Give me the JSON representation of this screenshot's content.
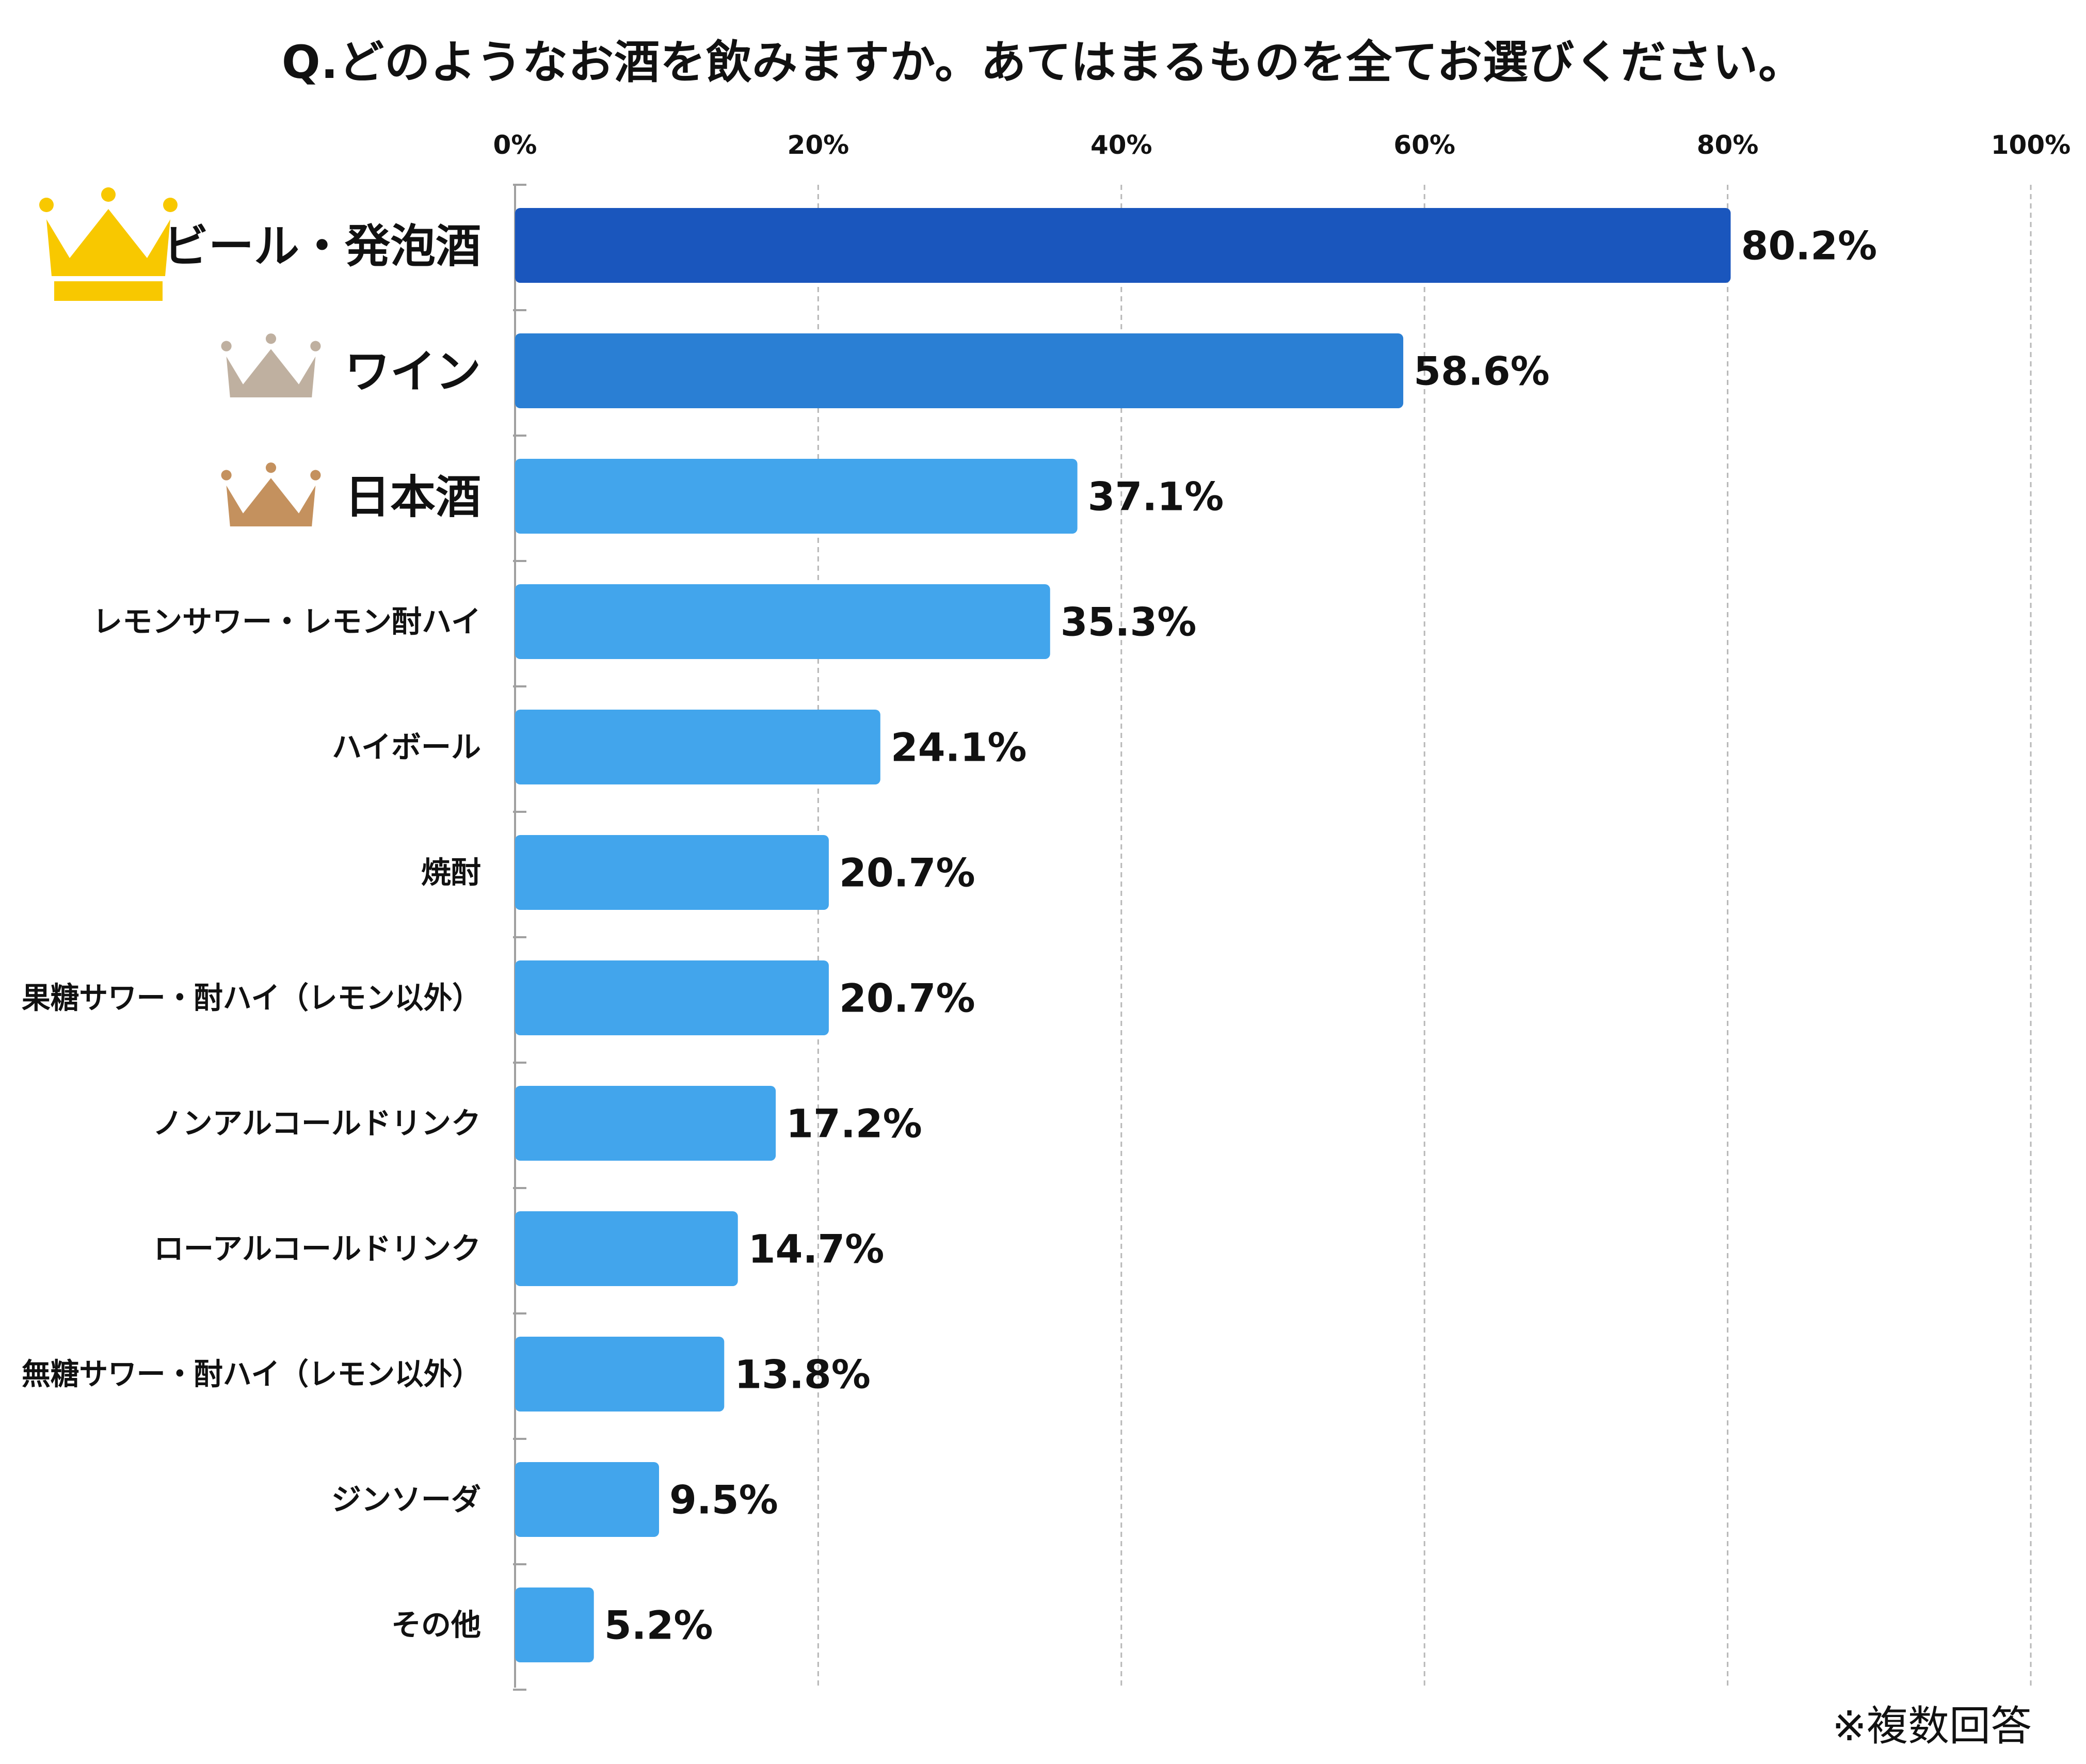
{
  "chart_data": {
    "type": "bar",
    "orientation": "horizontal",
    "title": "Q.どのようなお酒を飲みますか。あてはまるものを全てお選びください。",
    "xlim": [
      0,
      100
    ],
    "x_ticks": [
      "0%",
      "20%",
      "40%",
      "60%",
      "80%",
      "100%"
    ],
    "x_tick_values": [
      0,
      20,
      40,
      60,
      80,
      100
    ],
    "grid": "vertical-dashed",
    "categories": [
      "ビール・発泡酒",
      "ワイン",
      "日本酒",
      "レモンサワー・レモン酎ハイ",
      "ハイボール",
      "焼酎",
      "果糖サワー・酎ハイ（レモン以外）",
      "ノンアルコールドリンク",
      "ローアルコールドリンク",
      "無糖サワー・酎ハイ（レモン以外）",
      "ジンソーダ",
      "その他"
    ],
    "values": [
      80.2,
      58.6,
      37.1,
      35.3,
      24.1,
      20.7,
      20.7,
      17.2,
      14.7,
      13.8,
      9.5,
      5.2
    ],
    "value_labels": [
      "80.2%",
      "58.6%",
      "37.1%",
      "35.3%",
      "24.1%",
      "20.7%",
      "20.7%",
      "17.2%",
      "14.7%",
      "13.8%",
      "9.5%",
      "5.2%"
    ],
    "bar_colors": [
      "#1a56bd",
      "#2a7fd4",
      "#42a5ec",
      "#42a5ec",
      "#42a5ec",
      "#42a5ec",
      "#42a5ec",
      "#42a5ec",
      "#42a5ec",
      "#42a5ec",
      "#42a5ec",
      "#42a5ec"
    ],
    "rank_icons": [
      {
        "rank": 1,
        "icon": "gold-crown-icon",
        "color": "#f8c800"
      },
      {
        "rank": 2,
        "icon": "silver-crown-icon",
        "color": "#bfb0a0"
      },
      {
        "rank": 3,
        "icon": "bronze-crown-icon",
        "color": "#c4915e"
      }
    ],
    "footnote": "※複数回答"
  }
}
